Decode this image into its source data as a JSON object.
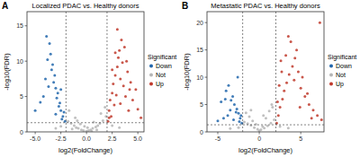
{
  "chart_data": [
    {
      "type": "scatter",
      "label": "A",
      "title": "Localized PDAC vs. Healthy donors",
      "x_label": "log2(FoldChange)",
      "y_label": "-log10(FDR)",
      "legend_title": "Significant",
      "legend": "right",
      "xlim": [
        -5.8,
        5.6
      ],
      "xticks": [
        {
          "value": -5,
          "label": "-5.0"
        },
        {
          "value": -2.5,
          "label": "-2.5"
        },
        {
          "value": 0,
          "label": "0.0"
        },
        {
          "value": 2.5,
          "label": "2.5"
        },
        {
          "value": 5,
          "label": "5.0"
        }
      ],
      "ylim": [
        0,
        17
      ],
      "yticks": [
        0,
        5,
        10,
        15
      ],
      "vlines": [
        -2,
        2
      ],
      "hline": 1.3,
      "series": [
        {
          "name": "Down",
          "color": "#2166ac",
          "x": [
            -2.1,
            -2.3,
            -2.5,
            -2.6,
            -2.8,
            -3.0,
            -3.1,
            -3.3,
            -3.5,
            -3.6,
            -3.8,
            -4.0,
            -4.2,
            -2.2,
            -2.4,
            -2.7,
            -2.9,
            -3.2,
            -3.4,
            -3.7,
            -4.5,
            -5.0,
            -3.9,
            -2.5,
            -3.0
          ],
          "values": [
            1.5,
            2.2,
            3.0,
            4.1,
            5.5,
            6.2,
            8.0,
            9.5,
            11.0,
            12.5,
            10.2,
            7.5,
            5.0,
            2.8,
            1.8,
            3.6,
            4.8,
            7.0,
            8.8,
            6.4,
            4.2,
            3.0,
            13.5,
            6.0,
            2.5
          ]
        },
        {
          "name": "Not",
          "color": "#b5b5b5",
          "x": [
            -1.8,
            -1.5,
            -1.2,
            -1.0,
            -0.8,
            -0.5,
            -0.3,
            0,
            0.2,
            0.4,
            0.6,
            0.9,
            1.1,
            1.3,
            1.6,
            1.9,
            -1.7,
            -1.1,
            -0.6,
            0.1,
            0.7,
            1.4,
            1.8,
            -2.5,
            -3.0,
            2.5,
            3.2,
            -1.4,
            0.5,
            1.0,
            -0.2,
            -0.9
          ],
          "values": [
            1.5,
            1.2,
            0.9,
            0.6,
            0.5,
            0.3,
            0.2,
            0.1,
            0.2,
            0.3,
            0.5,
            0.7,
            0.9,
            1.2,
            1.6,
            2.2,
            3.0,
            2.0,
            1.1,
            0.6,
            1.4,
            2.6,
            3.5,
            0.8,
            0.5,
            0.9,
            0.6,
            0.4,
            0.1,
            0.3,
            0.8,
            1.6
          ]
        },
        {
          "name": "Up",
          "color": "#c0392b",
          "x": [
            2.1,
            2.2,
            2.3,
            2.5,
            2.6,
            2.8,
            3.0,
            3.1,
            3.3,
            3.5,
            3.7,
            4.0,
            4.2,
            4.5,
            5.0,
            5.3,
            2.4,
            2.7,
            2.9,
            3.2,
            3.4,
            3.6,
            3.9,
            4.3,
            2.2,
            2.5,
            2.8,
            3.0,
            3.3,
            3.8,
            4.1,
            4.8
          ],
          "values": [
            1.5,
            3.0,
            4.5,
            5.5,
            6.8,
            8.0,
            9.2,
            10.5,
            7.5,
            9.8,
            12.0,
            8.5,
            6.0,
            4.5,
            3.2,
            2.0,
            2.2,
            3.8,
            5.2,
            11.5,
            13.0,
            6.5,
            10.0,
            7.0,
            2.0,
            8.8,
            11.2,
            14.5,
            4.0,
            5.0,
            3.0,
            6.0
          ]
        }
      ]
    },
    {
      "type": "scatter",
      "label": "B",
      "title": "Metastatic PDAC vs. Healthy donors",
      "x_label": "log2(FoldChange)",
      "y_label": "-log10(FDR)",
      "legend_title": "Significant",
      "legend": "right",
      "xlim": [
        -6.3,
        7.8
      ],
      "xticks": [
        -5,
        0,
        5
      ],
      "ylim": [
        0,
        22
      ],
      "yticks": [
        0,
        5,
        10,
        15,
        20
      ],
      "vlines": [
        -2,
        2
      ],
      "hline": 1.3,
      "series": [
        {
          "name": "Down",
          "color": "#2166ac",
          "x": [
            -2.1,
            -2.3,
            -2.5,
            -2.7,
            -3.0,
            -3.2,
            -3.5,
            -3.8,
            -4.0,
            -4.3,
            -4.6,
            -5.0,
            -2.4,
            -2.8,
            -3.1,
            -3.4,
            -3.7,
            -4.1,
            -2.2,
            -2.6
          ],
          "values": [
            1.6,
            2.5,
            3.4,
            4.2,
            5.0,
            6.5,
            4.0,
            3.0,
            7.5,
            2.5,
            5.5,
            2.0,
            1.9,
            3.6,
            2.2,
            5.8,
            8.5,
            6.0,
            3.0,
            10.0
          ]
        },
        {
          "name": "Not",
          "color": "#b5b5b5",
          "x": [
            -1.8,
            -1.4,
            -1.0,
            -0.6,
            -0.2,
            0.2,
            0.6,
            1.0,
            1.4,
            1.8,
            -1.6,
            -1.2,
            -0.8,
            -0.4,
            0,
            0.4,
            0.8,
            1.2,
            1.6,
            -2.5,
            -3.5,
            2.5,
            3.5,
            -1.0,
            0.5,
            1.5
          ],
          "values": [
            1.8,
            1.5,
            1.2,
            0.8,
            0.5,
            0.4,
            0.7,
            1.1,
            1.6,
            2.2,
            3.5,
            2.8,
            2.0,
            1.4,
            0.2,
            1.0,
            2.5,
            3.8,
            4.5,
            0.8,
            0.6,
            1.0,
            0.7,
            4.0,
            3.0,
            5.0
          ]
        },
        {
          "name": "Up",
          "color": "#c0392b",
          "x": [
            2.1,
            2.3,
            2.5,
            2.8,
            3.0,
            3.3,
            3.6,
            4.0,
            4.3,
            4.7,
            5.0,
            5.5,
            6.0,
            6.5,
            7.0,
            7.5,
            2.4,
            2.7,
            3.2,
            3.8,
            4.5,
            5.2,
            5.8,
            6.3,
            2.2,
            2.6,
            3.5,
            4.2,
            4.9,
            7.3
          ],
          "values": [
            1.6,
            3.0,
            4.5,
            6.0,
            7.5,
            9.0,
            10.5,
            12.0,
            13.5,
            11.0,
            8.0,
            6.5,
            5.0,
            4.0,
            3.0,
            2.2,
            8.5,
            11.0,
            14.0,
            16.5,
            15.0,
            10.0,
            7.0,
            2.5,
            5.5,
            13.0,
            17.5,
            9.5,
            4.5,
            20.0
          ]
        }
      ]
    }
  ]
}
